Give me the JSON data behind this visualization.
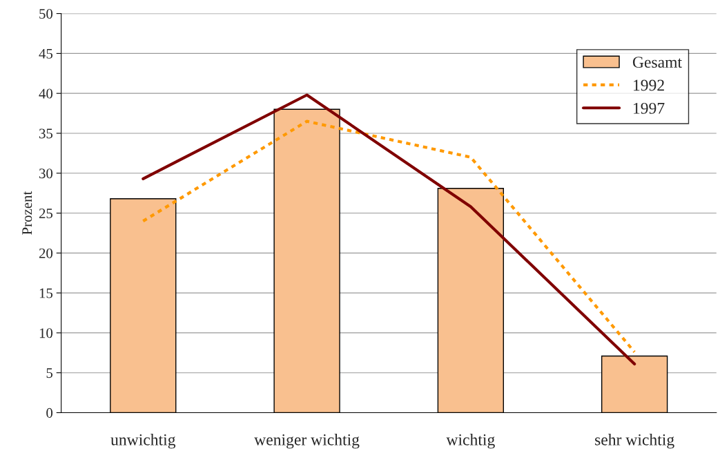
{
  "chart_data": {
    "type": "bar",
    "ylabel": "Prozent",
    "categories": [
      "unwichtig",
      "weniger wichtig",
      "wichtig",
      "sehr wichtig"
    ],
    "series": [
      {
        "name": "Gesamt",
        "color": "#f9c08f",
        "values": [
          26.8,
          38,
          28.1,
          7.1
        ]
      },
      {
        "name": "1992",
        "type": "line",
        "color": "#ff9900",
        "line_style": "dotted",
        "values": [
          24,
          36.5,
          32,
          7.6
        ]
      },
      {
        "name": "1997",
        "type": "line",
        "color": "#800000",
        "line_style": "solid",
        "values": [
          29.3,
          39.8,
          25.8,
          6.1
        ]
      }
    ],
    "ylim": [
      0,
      50
    ],
    "yticks": [
      0,
      5,
      10,
      15,
      20,
      25,
      30,
      35,
      40,
      45,
      50
    ],
    "grid": "y",
    "legend": "top right"
  }
}
